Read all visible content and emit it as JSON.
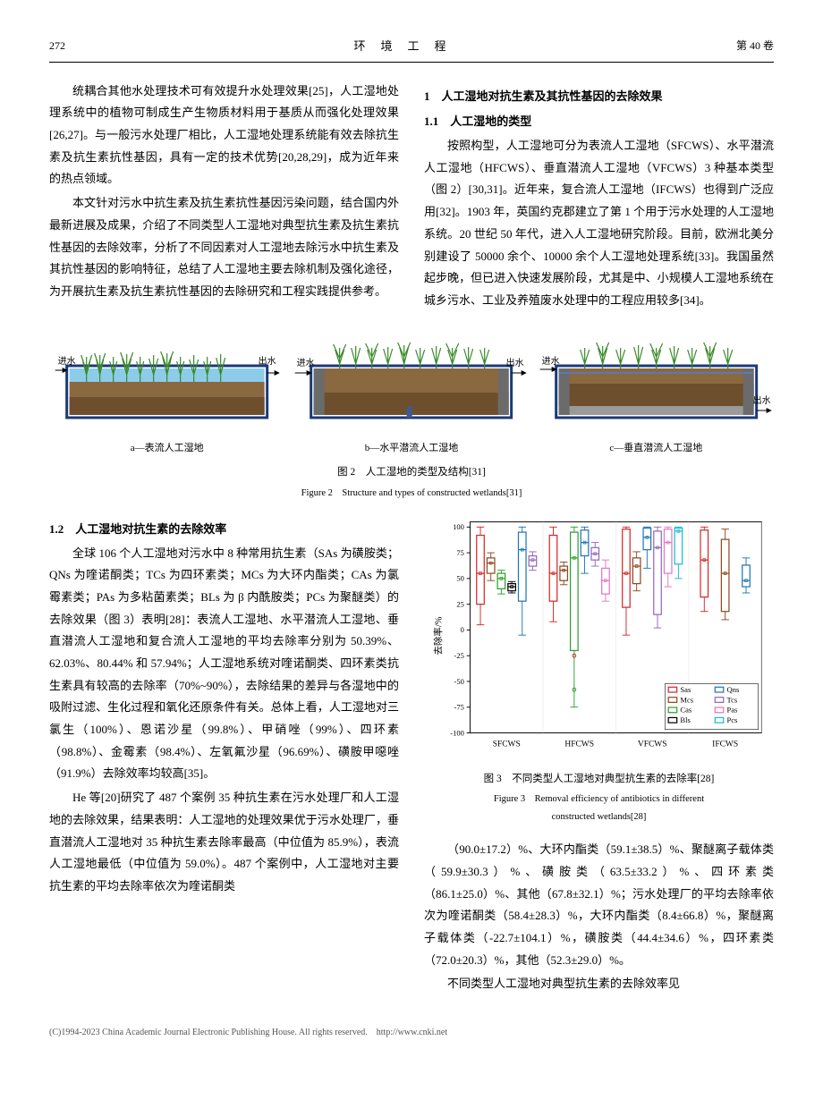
{
  "header": {
    "page": "272",
    "journal": "环　境　工　程",
    "volume": "第 40 卷"
  },
  "col1_top": {
    "p1": "统耦合其他水处理技术可有效提升水处理效果[25]，人工湿地处理系统中的植物可制成生产生物质材料用于基质从而强化处理效果[26,27]。与一般污水处理厂相比，人工湿地处理系统能有效去除抗生素及抗生素抗性基因，具有一定的技术优势[20,28,29]，成为近年来的热点领域。",
    "p2": "本文针对污水中抗生素及抗生素抗性基因污染问题，结合国内外最新进展及成果，介绍了不同类型人工湿地对典型抗生素及抗生素抗性基因的去除效率，分析了不同因素对人工湿地去除污水中抗生素及其抗性基因的影响特征，总结了人工湿地主要去除机制及强化途径，为开展抗生素及抗生素抗性基因的去除研究和工程实践提供参考。"
  },
  "col2_top": {
    "s1_title": "1　人工湿地对抗生素及其抗性基因的去除效果",
    "s11_title": "1.1　人工湿地的类型",
    "p1": "按照构型，人工湿地可分为表流人工湿地（SFCWS）、水平潜流人工湿地（HFCWS）、垂直潜流人工湿地（VFCWS）3 种基本类型（图 2）[30,31]。近年来，复合流人工湿地（IFCWS）也得到广泛应用[32]。1903 年，英国约克郡建立了第 1 个用于污水处理的人工湿地系统。20 世纪 50 年代，进入人工湿地研究阶段。目前，欧洲北美分别建设了 50000 余个、10000 余个人工湿地处理系统[33]。我国虽然起步晚，但已进入快速发展阶段，尤其是中、小规模人工湿地系统在城乡污水、工业及养殖废水处理中的工程应用较多[34]。"
  },
  "fig2": {
    "labels": {
      "in": "进水",
      "out": "出水",
      "a": "a—表流人工湿地",
      "b": "b—水平潜流人工湿地",
      "c": "c—垂直潜流人工湿地"
    },
    "title_cn": "图 2　人工湿地的类型及结构[31]",
    "title_en": "Figure 2　Structure and types of constructed wetlands[31]",
    "colors": {
      "frame": "#1a3a7a",
      "soil1": "#8a6840",
      "soil2": "#6d4f2e",
      "water": "#8dcce8",
      "gravel": "#6b6b6b",
      "plant": "#3a8a2a",
      "plant_stem": "#a08030"
    }
  },
  "col1_bottom": {
    "s12_title": "1.2　人工湿地对抗生素的去除效率",
    "p1": "全球 106 个人工湿地对污水中 8 种常用抗生素（SAs 为磺胺类；QNs 为喹诺酮类；TCs 为四环素类；MCs 为大环内酯类；CAs 为氯霉素类；PAs 为多粘菌素类；BLs 为 β 内酰胺类；PCs 为聚醚类）的去除效果（图 3）表明[28]：表流人工湿地、水平潜流人工湿地、垂直潜流人工湿地和复合流人工湿地的平均去除率分别为 50.39%、62.03%、80.44% 和 57.94%；人工湿地系统对喹诺酮类、四环素类抗生素具有较高的去除率（70%~90%），去除结果的差异与各湿地中的吸附过滤、生化过程和氧化还原条件有关。总体上看，人工湿地对三氯生（100%）、恩诺沙星（99.8%）、甲硝唑（99%）、四环素（98.8%）、金霉素（98.4%）、左氧氟沙星（96.69%）、磺胺甲噁唑（91.9%）去除效率均较高[35]。",
    "p2": "He 等[20]研究了 487 个案例 35 种抗生素在污水处理厂和人工湿地的去除效果，结果表明：人工湿地的处理效果优于污水处理厂，垂直潜流人工湿地对 35 种抗生素去除率最高（中位值为 85.9%），表流人工湿地最低（中位值为 59.0%）。487 个案例中，人工湿地对主要抗生素的平均去除率依次为喹诺酮类"
  },
  "fig3": {
    "title_cn": "图 3　不同类型人工湿地对典型抗生素的去除率[28]",
    "title_en1": "Figure 3　Removal efficiency of antibiotics in different",
    "title_en2": "constructed wetlands[28]",
    "ylabel": "去除率/%",
    "categories": [
      "SFCWS",
      "HFCWS",
      "VFCWS",
      "IFCWS"
    ],
    "yticks": [
      -100,
      -75,
      -50,
      -25,
      0,
      25,
      50,
      75,
      100
    ],
    "ylim": [
      -100,
      105
    ],
    "legend": [
      {
        "name": "Sas",
        "color": "#d62728"
      },
      {
        "name": "Mcs",
        "color": "#8c4a1f"
      },
      {
        "name": "Cas",
        "color": "#2ca02c"
      },
      {
        "name": "Bls",
        "color": "#000000"
      },
      {
        "name": "Qns",
        "color": "#1f77b4"
      },
      {
        "name": "Tcs",
        "color": "#9467bd"
      },
      {
        "name": "Pas",
        "color": "#e377c2"
      },
      {
        "name": "Pcs",
        "color": "#17becf"
      }
    ],
    "boxes": {
      "SFCWS": [
        {
          "color": "#d62728",
          "q1": 25,
          "med": 55,
          "q3": 92,
          "lo": 5,
          "hi": 100
        },
        {
          "color": "#8c4a1f",
          "q1": 55,
          "med": 65,
          "q3": 70,
          "lo": 48,
          "hi": 75
        },
        {
          "color": "#2ca02c",
          "q1": 40,
          "med": 50,
          "q3": 55,
          "lo": 35,
          "hi": 58
        },
        {
          "color": "#000000",
          "q1": 38,
          "med": 42,
          "q3": 45,
          "lo": 36,
          "hi": 47
        },
        {
          "color": "#1f77b4",
          "q1": 28,
          "med": 78,
          "q3": 95,
          "lo": -5,
          "hi": 100
        },
        {
          "color": "#9467bd",
          "q1": 62,
          "med": 68,
          "q3": 72,
          "lo": 58,
          "hi": 76
        }
      ],
      "HFCWS": [
        {
          "color": "#d62728",
          "q1": 28,
          "med": 55,
          "q3": 92,
          "lo": 8,
          "hi": 100
        },
        {
          "color": "#8c4a1f",
          "q1": 48,
          "med": 58,
          "q3": 62,
          "lo": 44,
          "hi": 66
        },
        {
          "color": "#2ca02c",
          "q1": -20,
          "med": 70,
          "q3": 95,
          "lo": -75,
          "hi": 100
        },
        {
          "color": "#1f77b4",
          "q1": 72,
          "med": 85,
          "q3": 97,
          "lo": 55,
          "hi": 100
        },
        {
          "color": "#9467bd",
          "q1": 68,
          "med": 74,
          "q3": 80,
          "lo": 62,
          "hi": 85
        },
        {
          "color": "#e377c2",
          "q1": 35,
          "med": 48,
          "q3": 60,
          "lo": 28,
          "hi": 68
        }
      ],
      "VFCWS": [
        {
          "color": "#d62728",
          "q1": 22,
          "med": 55,
          "q3": 98,
          "lo": -5,
          "hi": 100
        },
        {
          "color": "#8c4a1f",
          "q1": 45,
          "med": 62,
          "q3": 70,
          "lo": 38,
          "hi": 76
        },
        {
          "color": "#1f77b4",
          "q1": 78,
          "med": 90,
          "q3": 99,
          "lo": 60,
          "hi": 100
        },
        {
          "color": "#9467bd",
          "q1": 15,
          "med": 80,
          "q3": 96,
          "lo": 2,
          "hi": 100
        },
        {
          "color": "#e377c2",
          "q1": 55,
          "med": 85,
          "q3": 98,
          "lo": 42,
          "hi": 100
        },
        {
          "color": "#17becf",
          "q1": 64,
          "med": 96,
          "q3": 99,
          "lo": 50,
          "hi": 100
        }
      ],
      "IFCWS": [
        {
          "color": "#d62728",
          "q1": 32,
          "med": 68,
          "q3": 97,
          "lo": 18,
          "hi": 100
        },
        {
          "color": "#8c4a1f",
          "q1": 18,
          "med": 55,
          "q3": 88,
          "lo": 10,
          "hi": 98
        },
        {
          "color": "#1f77b4",
          "q1": 42,
          "med": 48,
          "q3": 63,
          "lo": 36,
          "hi": 70
        }
      ]
    },
    "outliers": [
      {
        "cat": "HFCWS",
        "idx": 2,
        "y": -58,
        "color": "#2ca02c"
      },
      {
        "cat": "HFCWS",
        "idx": 2,
        "y": -25,
        "color": "#d62728"
      }
    ],
    "bg": "#ffffff",
    "grid": "#cccccc"
  },
  "col2_bottom": {
    "p1": "（90.0±17.2）%、大环内酯类（59.1±38.5）%、聚醚离子载体类（59.9±30.3）%、磺胺类（63.5±33.2）%、四环素类（86.1±25.0）%、其他（67.8±32.1）%；污水处理厂的平均去除率依次为喹诺酮类（58.4±28.3）%，大环内酯类（8.4±66.8）%，聚醚离子载体类（-22.7±104.1）%，磺胺类（44.4±34.6）%，四环素类（72.0±20.3）%，其他（52.3±29.0）%。",
    "p2": "不同类型人工湿地对典型抗生素的去除效率见"
  },
  "footer": {
    "text": "(C)1994-2023 China Academic Journal Electronic Publishing House. All rights reserved.",
    "url": "http://www.cnki.net"
  }
}
